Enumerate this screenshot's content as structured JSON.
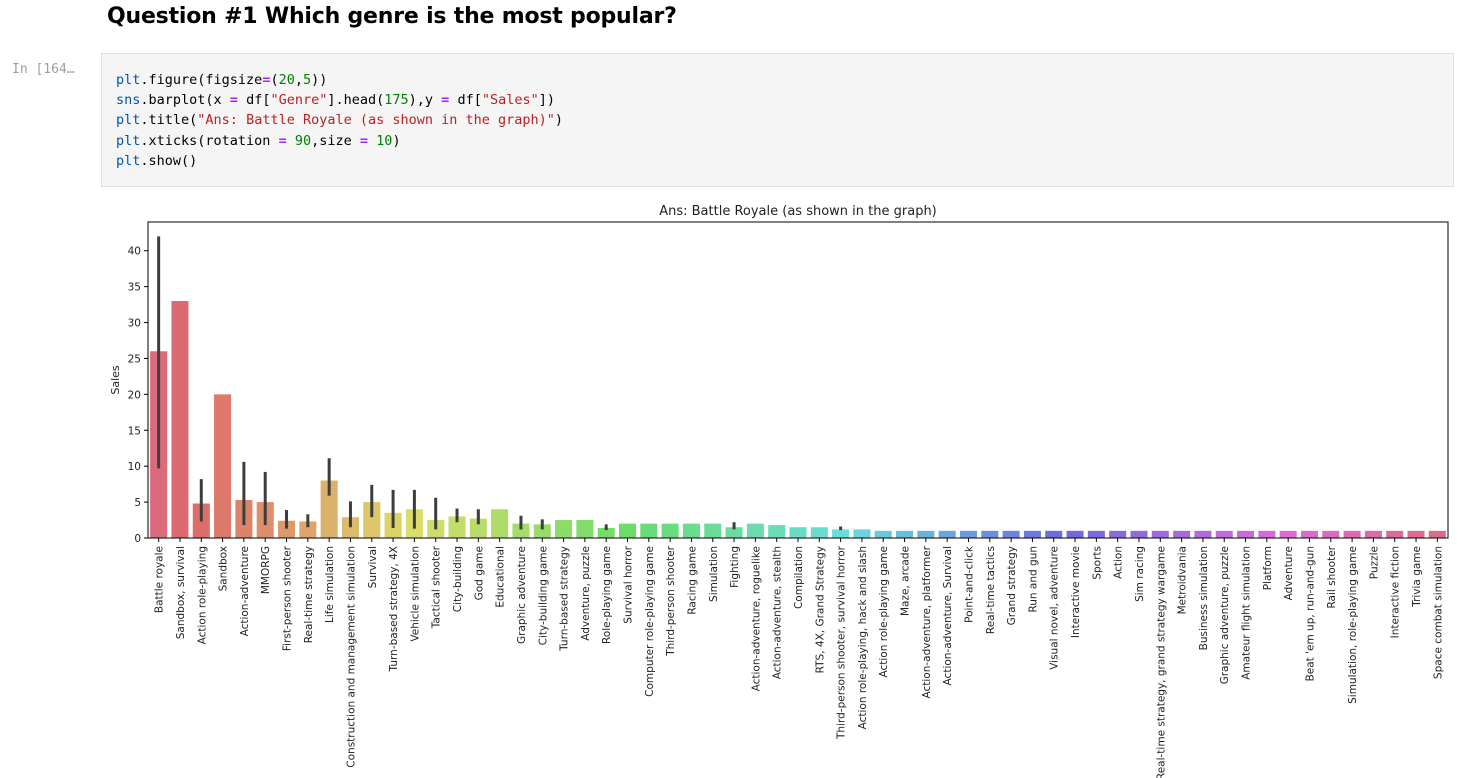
{
  "notebook": {
    "heading": "Question #1 Which genre is the most popular?",
    "prompt": "In [164…",
    "code_lines": [
      "plt.figure(figsize=(20,5))",
      "sns.barplot(x = df[\"Genre\"].head(175),y = df[\"Sales\"])",
      "plt.title(\"Ans: Battle Royale (as shown in the graph)\")",
      "plt.xticks(rotation = 90,size = 10)",
      "plt.show()"
    ]
  },
  "chart_data": {
    "type": "bar",
    "title": "Ans: Battle Royale (as shown in the graph)",
    "xlabel": "",
    "ylabel": "Sales",
    "ylim": [
      0,
      44
    ],
    "yticks": [
      0,
      5,
      10,
      15,
      20,
      25,
      30,
      35,
      40
    ],
    "grid": false,
    "legend": "none",
    "palette": "husl",
    "categories": [
      "Battle royale",
      "Sandbox, survival",
      "Action role-playing",
      "Sandbox",
      "Action-adventure",
      "MMORPG",
      "First-person shooter",
      "Real-time strategy",
      "Life simulation",
      "Construction and management simulation",
      "Survival",
      "Turn-based strategy, 4X",
      "Vehicle simulation",
      "Tactical shooter",
      "City-building",
      "God game",
      "Educational",
      "Graphic adventure",
      "City-building game",
      "Turn-based strategy",
      "Adventure, puzzle",
      "Role-playing game",
      "Survival horror",
      "Computer role-playing game",
      "Third-person shooter",
      "Racing game",
      "Simulation",
      "Fighting",
      "Action-adventure, roguelike",
      "Action-adventure, stealth",
      "Compilation",
      "RTS, 4X, Grand Strategy",
      "Third-person shooter, survival horror",
      "Action role-playing, hack and slash",
      "Action role-playing game",
      "Maze, arcade",
      "Action-adventure, platformer",
      "Action-adventure, Survival",
      "Point-and-click",
      "Real-time tactics",
      "Grand strategy",
      "Run and gun",
      "Visual novel, adventure",
      "Interactive movie",
      "Sports",
      "Action",
      "Sim racing",
      "Real-time strategy, grand strategy wargame",
      "Metroidvania",
      "Business simulation",
      "Graphic adventure, puzzle",
      "Amateur flight simulation",
      "Platform",
      "Adventure",
      "Beat 'em up, run-and-gun",
      "Rail shooter",
      "Simulation, role-playing game",
      "Puzzle",
      "Interactive fiction",
      "Trivia game",
      "Space combat simulation"
    ],
    "values": [
      26,
      33,
      4.8,
      20,
      5.3,
      5,
      2.4,
      2.3,
      8,
      2.9,
      5,
      3.5,
      4,
      2.5,
      3,
      2.7,
      4,
      2,
      1.9,
      2.5,
      2.5,
      1.4,
      2,
      2,
      2,
      2,
      2,
      1.5,
      2,
      1.8,
      1.5,
      1.5,
      1.2,
      1.2,
      1,
      1,
      1,
      1,
      1,
      1,
      1,
      1,
      1,
      1,
      1,
      1,
      1,
      1,
      1,
      1,
      1,
      1,
      1,
      1,
      1,
      1,
      1,
      1,
      1,
      1,
      1
    ],
    "error_bars": [
      [
        9.7,
        42
      ],
      null,
      [
        2.3,
        8.2
      ],
      null,
      [
        1.8,
        10.6
      ],
      [
        1.8,
        9.2
      ],
      [
        1.3,
        3.9
      ],
      [
        1.5,
        3.3
      ],
      [
        5.9,
        11.1
      ],
      [
        1.5,
        5.1
      ],
      [
        2.9,
        7.4
      ],
      [
        1.4,
        6.7
      ],
      [
        1.3,
        6.7
      ],
      [
        1.2,
        5.6
      ],
      [
        2.2,
        4.1
      ],
      [
        1.9,
        4
      ],
      null,
      [
        1.2,
        3.1
      ],
      [
        1.2,
        2.6
      ],
      null,
      null,
      [
        1.1,
        1.9
      ],
      null,
      null,
      null,
      null,
      null,
      [
        1.2,
        2.2
      ],
      null,
      null,
      null,
      null,
      [
        1.1,
        1.6
      ],
      null,
      null,
      null,
      null,
      null,
      null,
      null,
      null,
      null,
      null,
      null,
      null,
      null,
      null,
      null,
      null,
      null,
      null,
      null,
      null,
      null,
      null,
      null,
      null,
      null,
      null,
      null,
      null
    ]
  }
}
